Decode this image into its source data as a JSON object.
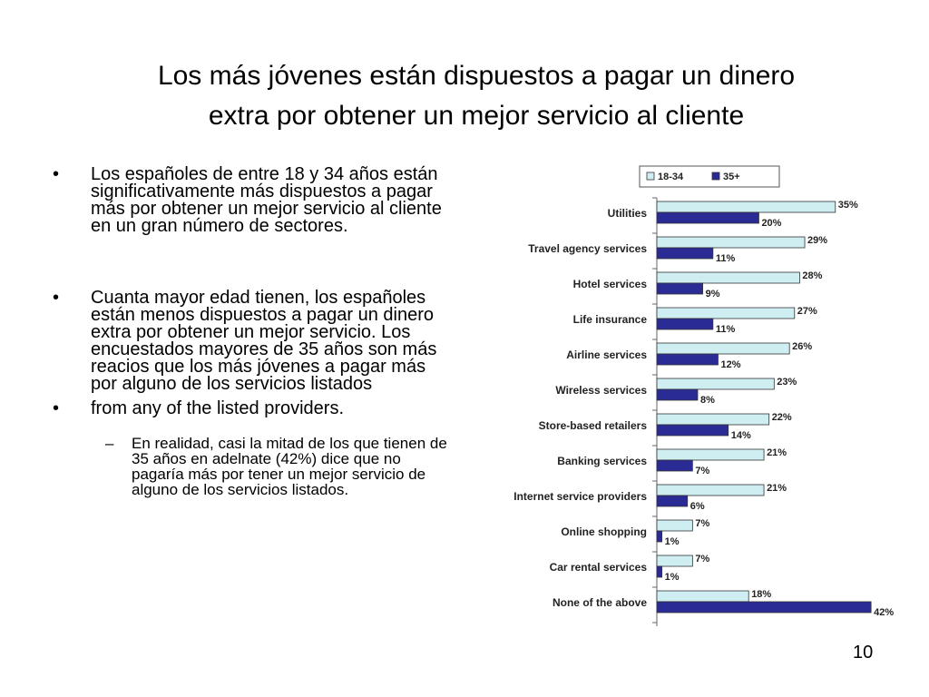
{
  "slide": {
    "title_line1": "Los más jóvenes están dispuestos a pagar un dinero",
    "title_line2": "extra por obtener un mejor servicio al cliente",
    "bullet_symbol": "•",
    "dash_symbol": "–",
    "bullets": [
      "Los españoles de entre 18 y 34 años están significativamente más dispuestos a pagar más por obtener un mejor servicio al cliente en un gran número de sectores.",
      "Cuanta mayor edad tienen, los españoles están menos dispuestos a pagar un dinero extra por obtener un mejor servicio. Los encuestados mayores de 35 años son más reacios que los más jóvenes a pagar más por alguno de los servicios listados",
      "from any of the listed providers."
    ],
    "sub_bullet": "En realidad, casi la mitad de los que tienen de 35 años en adelnate (42%) dice que no pagaría más por tener un mejor servicio de alguno de los servicios listados.",
    "page_number": "10"
  },
  "chart_data": {
    "type": "bar",
    "orientation": "horizontal",
    "categories": [
      "Utilities",
      "Travel agency services",
      "Hotel services",
      "Life insurance",
      "Airline services",
      "Wireless services",
      "Store-based retailers",
      "Banking services",
      "Internet service providers",
      "Online shopping",
      "Car rental services",
      "None of the above"
    ],
    "series": [
      {
        "name": "18-34",
        "color": "#cfeef2",
        "values": [
          35,
          29,
          28,
          27,
          26,
          23,
          22,
          21,
          21,
          7,
          7,
          18
        ]
      },
      {
        "name": "35+",
        "color": "#2b2b96",
        "values": [
          20,
          11,
          9,
          11,
          12,
          8,
          14,
          7,
          6,
          1,
          1,
          42
        ]
      }
    ],
    "value_suffix": "%",
    "xlim": [
      0,
      45
    ],
    "legend_position": "top",
    "grid": false
  }
}
